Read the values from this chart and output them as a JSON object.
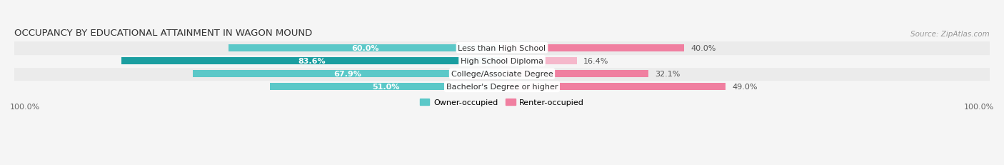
{
  "title": "OCCUPANCY BY EDUCATIONAL ATTAINMENT IN WAGON MOUND",
  "source": "Source: ZipAtlas.com",
  "categories": [
    "Less than High School",
    "High School Diploma",
    "College/Associate Degree",
    "Bachelor's Degree or higher"
  ],
  "owner_values": [
    60.0,
    83.6,
    67.9,
    51.0
  ],
  "renter_values": [
    40.0,
    16.4,
    32.1,
    49.0
  ],
  "owner_colors": [
    "#5bc8c8",
    "#1a9ea0",
    "#5bc8c8",
    "#5bc8c8"
  ],
  "renter_colors": [
    "#f07fa0",
    "#f5b8cb",
    "#f07fa0",
    "#f07fa0"
  ],
  "bar_height": 0.55,
  "background_color": "#f5f5f5",
  "row_bg_odd": "#ebebeb",
  "row_bg_even": "#f5f5f5",
  "axis_label_left": "100.0%",
  "axis_label_right": "100.0%",
  "legend_owner": "Owner-occupied",
  "legend_renter": "Renter-occupied",
  "owner_label_color_inside": "white",
  "owner_label_color_outside": "#555555",
  "renter_label_color_outside": "#555555",
  "title_fontsize": 9.5,
  "label_fontsize": 8.0,
  "source_fontsize": 7.5,
  "owner_label_outside_threshold": 15,
  "renter_label_outside_threshold": 5
}
